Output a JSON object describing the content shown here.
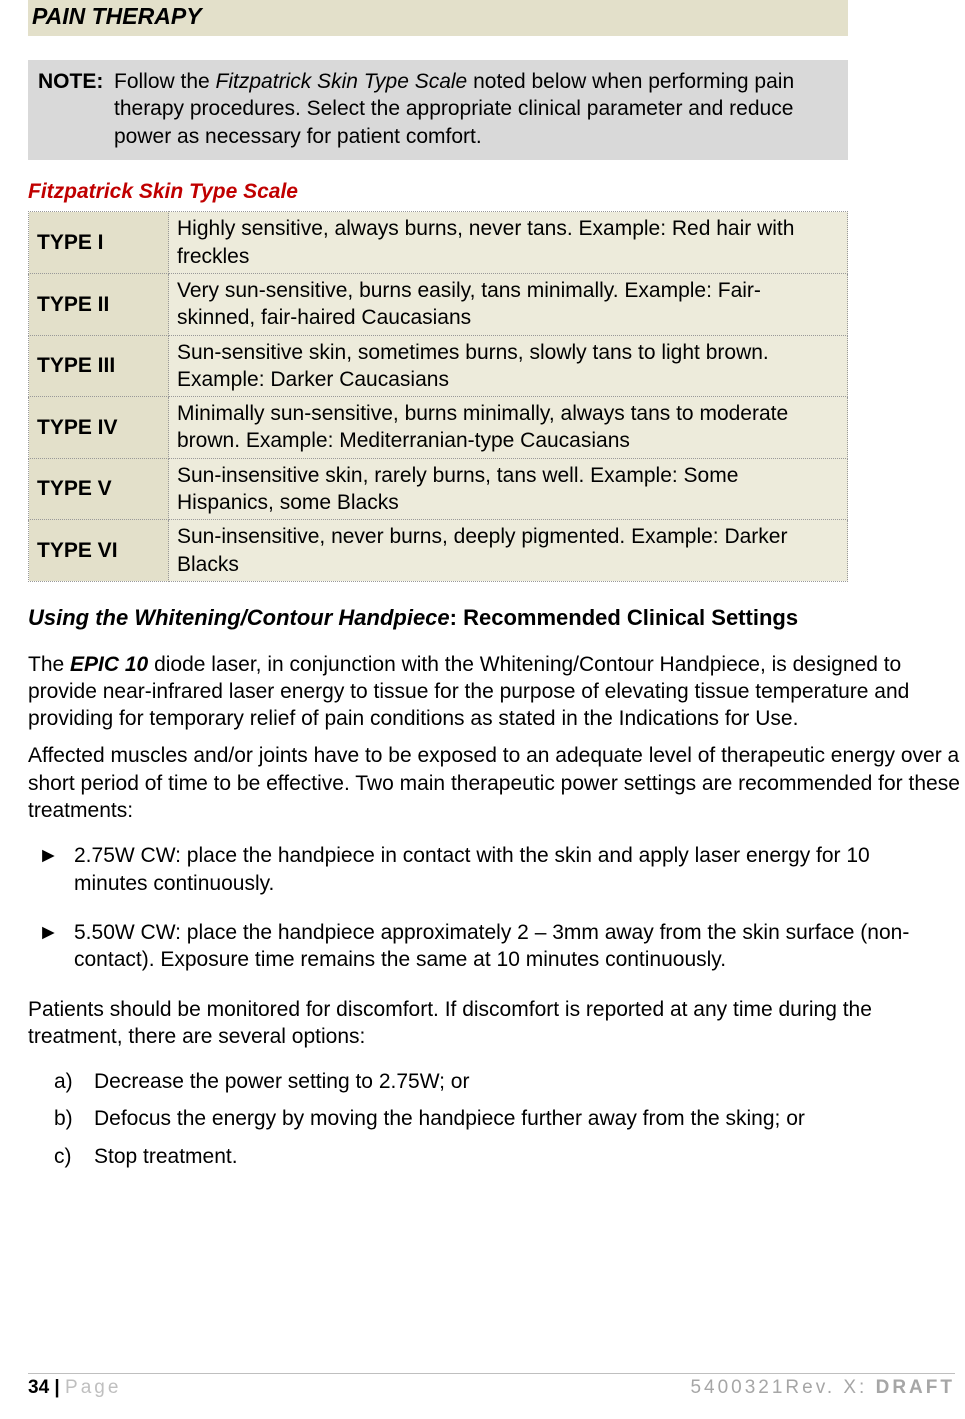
{
  "section_title": "PAIN THERAPY",
  "note": {
    "label": "NOTE:",
    "text_line1": "Follow the ",
    "text_ital": "Fitzpatrick Skin Type Scale",
    "text_line1b": " noted below when performing pain",
    "text_line2": "therapy procedures.  Select the appropriate clinical parameter and reduce",
    "text_line3": "power as necessary for patient comfort."
  },
  "fitz_heading": "Fitzpatrick Skin Type Scale",
  "skin_table": {
    "rows": [
      {
        "type": "TYPE I",
        "desc": "Highly sensitive, always burns, never tans.  Example:  Red hair with freckles"
      },
      {
        "type": "TYPE II",
        "desc": "Very sun-sensitive, burns easily, tans minimally.  Example:  Fair-skinned, fair-haired Caucasians"
      },
      {
        "type": "TYPE III",
        "desc": "Sun-sensitive skin, sometimes burns, slowly tans to light brown.  Example:  Darker Caucasians"
      },
      {
        "type": "TYPE IV",
        "desc": "Minimally sun-sensitive, burns minimally, always tans to moderate brown.  Example:  Mediterranian-type Caucasians"
      },
      {
        "type": "TYPE V",
        "desc": "Sun-insensitive skin, rarely burns, tans well. Example:  Some Hispanics, some Blacks"
      },
      {
        "type": "TYPE VI",
        "desc": "Sun-insensitive, never burns, deeply pigmented.  Example:  Darker Blacks"
      }
    ],
    "colors": {
      "type_bg": "#e3e0ca",
      "desc_bg": "#edebdb",
      "border": "#999999"
    }
  },
  "sub_heading_ital": "Using the Whitening/Contour Handpiece",
  "sub_heading_rest": ":  Recommended Clinical Settings",
  "para1_a": "The ",
  "para1_bold": "EPIC 10",
  "para1_b": " diode laser, in conjunction with the Whitening/Contour Handpiece, is designed to provide near-infrared laser energy to tissue for the purpose of elevating tissue temperature and providing for temporary relief of pain conditions as stated in the Indications for Use.",
  "para2": "Affected muscles and/or joints have to be exposed to an adequate level of therapeutic energy over a short period of time to be effective.  Two main therapeutic power settings are recommended for these treatments:",
  "bullets": [
    "2.75W CW:  place the handpiece in contact with the skin and apply laser energy for 10 minutes continuously.",
    "5.50W CW:  place the handpiece approximately 2 – 3mm away from the skin surface (non-contact).  Exposure time remains the same at 10 minutes continuously."
  ],
  "para3": "Patients should be monitored for discomfort.  If discomfort is reported at any time during the treatment, there are several options:",
  "options": [
    {
      "lbl": "a)",
      "text": "Decrease the power setting to 2.75W; or"
    },
    {
      "lbl": "b)",
      "text": "Defocus the energy by moving the handpiece further away from the sking; or"
    },
    {
      "lbl": "c)",
      "text": "Stop treatment."
    }
  ],
  "footer": {
    "page_num": "34 | ",
    "page_word": "Page",
    "right_code": "5400321Rev. X: ",
    "draft": "DRAFT"
  }
}
